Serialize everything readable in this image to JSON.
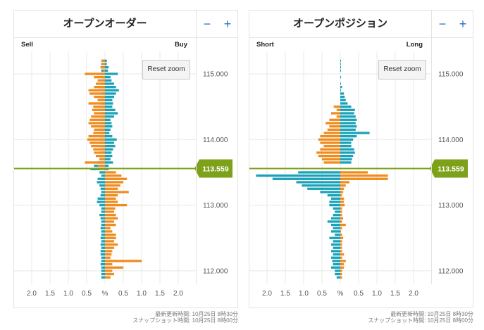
{
  "panels": [
    {
      "title": "オープンオーダー",
      "left_label": "Sell",
      "right_label": "Buy",
      "zoom_out_label": "−",
      "zoom_in_label": "+",
      "reset_zoom_label": "Reset zoom"
    },
    {
      "title": "オープンポジション",
      "left_label": "Short",
      "right_label": "Long",
      "zoom_out_label": "−",
      "zoom_in_label": "+",
      "reset_zoom_label": "Reset zoom"
    }
  ],
  "footer": {
    "update_time": "最新更新時間: 10月25日 8時30分",
    "snapshot_time": "スナップショット時間: 10月25日 8時00分"
  },
  "colors": {
    "sell_short": "#1aa3b8",
    "buy_long": "#f08c1e",
    "current_price": "#7ea11a",
    "grid": "#e8e8e8",
    "panel_border": "#e4e4e4",
    "zoom_button": "#2a73c4"
  },
  "chart_data": [
    {
      "type": "bar",
      "orientation": "horizontal-diverging",
      "title": "オープンオーダー",
      "x_tick_labels": [
        "2.0",
        "1.5",
        "1.0",
        "0.5",
        "%",
        "0.5",
        "1.0",
        "1.5",
        "2.0"
      ],
      "xlim": [
        -2.5,
        2.5
      ],
      "y_ticks": [
        "115.000",
        "114.000",
        "113.000",
        "112.000"
      ],
      "ylim": [
        111.85,
        115.35
      ],
      "current_price": 113.559,
      "current_price_label": "113.559",
      "bucket_size": 0.05,
      "price_levels": [
        115.2,
        115.15,
        115.1,
        115.05,
        115.0,
        114.95,
        114.9,
        114.85,
        114.8,
        114.75,
        114.7,
        114.65,
        114.6,
        114.55,
        114.5,
        114.45,
        114.4,
        114.35,
        114.3,
        114.25,
        114.2,
        114.15,
        114.1,
        114.05,
        114.0,
        113.95,
        113.9,
        113.85,
        113.8,
        113.75,
        113.7,
        113.65,
        113.6,
        113.55,
        113.5,
        113.45,
        113.4,
        113.35,
        113.3,
        113.25,
        113.2,
        113.15,
        113.1,
        113.05,
        113.0,
        112.95,
        112.9,
        112.85,
        112.8,
        112.75,
        112.7,
        112.65,
        112.6,
        112.55,
        112.5,
        112.45,
        112.4,
        112.35,
        112.3,
        112.25,
        112.2,
        112.15,
        112.1,
        112.05,
        112.0,
        111.95,
        111.9
      ],
      "series": [
        {
          "name": "Sell",
          "side": "left",
          "color": "#1aa3b8",
          "values": [
            0.08,
            0.1,
            0.12,
            0.1,
            0.12,
            0.1,
            0.1,
            0.12,
            0.15,
            0.12,
            0.1,
            0.12,
            0.1,
            0.12,
            0.12,
            0.15,
            0.12,
            0.1,
            0.12,
            0.12,
            0.1,
            0.12,
            0.12,
            0.15,
            0.15,
            0.15,
            0.12,
            0.1,
            0.12,
            0.15,
            0.15,
            0.2,
            0.3,
            0.4,
            0.15,
            0.1,
            0.2,
            0.22,
            0.15,
            0.12,
            0.1,
            0.12,
            0.2,
            0.22,
            0.15,
            0.1,
            0.1,
            0.15,
            0.12,
            0.1,
            0.1,
            0.12,
            0.1,
            0.1,
            0.12,
            0.1,
            0.12,
            0.1,
            0.12,
            0.12,
            0.1,
            0.1,
            0.12,
            0.1,
            0.1,
            0.1,
            0.1
          ]
        },
        {
          "name": "Sell",
          "side": "left",
          "color": "#f08c1e",
          "values": [
            0.1,
            0.08,
            0.12,
            0.05,
            0.55,
            0.3,
            0.2,
            0.25,
            0.3,
            0.45,
            0.42,
            0.3,
            0.2,
            0.45,
            0.32,
            0.35,
            0.3,
            0.38,
            0.42,
            0.45,
            0.38,
            0.3,
            0.32,
            0.45,
            0.48,
            0.42,
            0.38,
            0.32,
            0.3,
            0.25,
            0.15,
            0.55,
            0.2,
            0.15,
            0.0,
            0.0,
            0.0,
            0.0,
            0.0,
            0.0,
            0.0,
            0.0,
            0.0,
            0.0,
            0.0,
            0.0,
            0.0,
            0.0,
            0.0,
            0.0,
            0.0,
            0.0,
            0.0,
            0.0,
            0.0,
            0.0,
            0.0,
            0.0,
            0.0,
            0.0,
            0.0,
            0.0,
            0.0,
            0.0,
            0.0,
            0.0,
            0.0
          ]
        },
        {
          "name": "Buy",
          "side": "right",
          "color": "#1aa3b8",
          "values": [
            0.05,
            0.05,
            0.1,
            0.08,
            0.35,
            0.15,
            0.18,
            0.25,
            0.3,
            0.38,
            0.3,
            0.25,
            0.2,
            0.22,
            0.2,
            0.28,
            0.35,
            0.25,
            0.15,
            0.18,
            0.2,
            0.15,
            0.12,
            0.2,
            0.32,
            0.25,
            0.28,
            0.22,
            0.18,
            0.2,
            0.15,
            0.22,
            0.1,
            0.1,
            0.0,
            0.0,
            0.0,
            0.0,
            0.0,
            0.0,
            0.0,
            0.0,
            0.0,
            0.0,
            0.0,
            0.0,
            0.0,
            0.0,
            0.0,
            0.0,
            0.0,
            0.0,
            0.0,
            0.0,
            0.0,
            0.0,
            0.0,
            0.0,
            0.0,
            0.0,
            0.0,
            0.0,
            0.0,
            0.0,
            0.0,
            0.0,
            0.0
          ]
        },
        {
          "name": "Buy",
          "side": "right",
          "color": "#f08c1e",
          "values": [
            0.0,
            0.0,
            0.0,
            0.0,
            0.0,
            0.0,
            0.0,
            0.0,
            0.0,
            0.0,
            0.0,
            0.0,
            0.0,
            0.0,
            0.0,
            0.0,
            0.0,
            0.0,
            0.0,
            0.0,
            0.0,
            0.0,
            0.0,
            0.0,
            0.0,
            0.0,
            0.0,
            0.0,
            0.0,
            0.0,
            0.0,
            0.0,
            0.0,
            0.0,
            0.3,
            0.45,
            0.6,
            0.5,
            0.42,
            0.35,
            0.65,
            0.35,
            0.3,
            0.35,
            0.6,
            0.28,
            0.25,
            0.3,
            0.35,
            0.25,
            0.3,
            0.15,
            0.2,
            0.3,
            0.3,
            0.25,
            0.35,
            0.25,
            0.2,
            0.18,
            0.15,
            1.0,
            0.2,
            0.5,
            0.2,
            0.25,
            0.15
          ]
        }
      ]
    },
    {
      "type": "bar",
      "orientation": "horizontal-diverging",
      "title": "オープンポジション",
      "x_tick_labels": [
        "2.0",
        "1.5",
        "1.0",
        "0.5",
        "%",
        "0.5",
        "1.0",
        "1.5",
        "2.0"
      ],
      "xlim": [
        -2.5,
        2.5
      ],
      "y_ticks": [
        "115.000",
        "114.000",
        "113.000",
        "112.000"
      ],
      "ylim": [
        111.85,
        115.35
      ],
      "current_price": 113.559,
      "current_price_label": "113.559",
      "bucket_size": 0.05,
      "price_levels": [
        115.2,
        115.15,
        115.1,
        115.05,
        115.0,
        114.95,
        114.9,
        114.85,
        114.8,
        114.75,
        114.7,
        114.65,
        114.6,
        114.55,
        114.5,
        114.45,
        114.4,
        114.35,
        114.3,
        114.25,
        114.2,
        114.15,
        114.1,
        114.05,
        114.0,
        113.95,
        113.9,
        113.85,
        113.8,
        113.75,
        113.7,
        113.65,
        113.6,
        113.55,
        113.5,
        113.45,
        113.4,
        113.35,
        113.3,
        113.25,
        113.2,
        113.15,
        113.1,
        113.05,
        113.0,
        112.95,
        112.9,
        112.85,
        112.8,
        112.75,
        112.7,
        112.65,
        112.6,
        112.55,
        112.5,
        112.45,
        112.4,
        112.35,
        112.3,
        112.25,
        112.2,
        112.15,
        112.1,
        112.05,
        112.0,
        111.95,
        111.9
      ],
      "series": [
        {
          "name": "Short",
          "side": "left",
          "color": "#1aa3b8",
          "values": [
            0.0,
            0.0,
            0.0,
            0.0,
            0.0,
            0.0,
            0.0,
            0.0,
            0.0,
            0.0,
            0.0,
            0.0,
            0.0,
            0.0,
            0.0,
            0.0,
            0.0,
            0.0,
            0.0,
            0.0,
            0.0,
            0.0,
            0.0,
            0.0,
            0.0,
            0.0,
            0.0,
            0.0,
            0.0,
            0.0,
            0.0,
            0.0,
            0.0,
            0.0,
            1.15,
            2.3,
            1.85,
            1.2,
            1.05,
            0.9,
            0.55,
            0.35,
            0.25,
            0.3,
            0.3,
            0.2,
            0.15,
            0.2,
            0.25,
            0.35,
            0.25,
            0.2,
            0.25,
            0.15,
            0.3,
            0.2,
            0.25,
            0.2,
            0.25,
            0.2,
            0.25,
            0.22,
            0.2,
            0.25,
            0.15,
            0.15,
            0.1
          ]
        },
        {
          "name": "Short",
          "side": "left",
          "color": "#f08c1e",
          "values": [
            0.0,
            0.0,
            0.0,
            0.0,
            0.0,
            0.0,
            0.0,
            0.0,
            0.0,
            0.0,
            0.0,
            0.0,
            0.0,
            0.0,
            0.18,
            0.1,
            0.25,
            0.1,
            0.3,
            0.4,
            0.3,
            0.35,
            0.45,
            0.55,
            0.6,
            0.55,
            0.45,
            0.55,
            0.65,
            0.6,
            0.5,
            0.45,
            0.0,
            0.0,
            0.0,
            0.0,
            0.0,
            0.0,
            0.0,
            0.0,
            0.0,
            0.0,
            0.0,
            0.0,
            0.0,
            0.0,
            0.0,
            0.0,
            0.0,
            0.0,
            0.0,
            0.0,
            0.0,
            0.0,
            0.0,
            0.0,
            0.0,
            0.0,
            0.0,
            0.0,
            0.0,
            0.0,
            0.0,
            0.0,
            0.0,
            0.0,
            0.0
          ]
        },
        {
          "name": "Long",
          "side": "right",
          "color": "#1aa3b8",
          "values": [
            0.02,
            0.02,
            0.02,
            0.02,
            0.0,
            0.02,
            0.0,
            0.02,
            0.05,
            0.02,
            0.1,
            0.12,
            0.15,
            0.2,
            0.3,
            0.4,
            0.38,
            0.42,
            0.45,
            0.42,
            0.45,
            0.42,
            0.8,
            0.45,
            0.35,
            0.3,
            0.3,
            0.38,
            0.4,
            0.35,
            0.32,
            0.3,
            0.0,
            0.0,
            0.0,
            0.0,
            0.0,
            0.0,
            0.0,
            0.0,
            0.0,
            0.0,
            0.0,
            0.0,
            0.0,
            0.0,
            0.0,
            0.0,
            0.0,
            0.0,
            0.0,
            0.0,
            0.0,
            0.0,
            0.0,
            0.0,
            0.0,
            0.0,
            0.0,
            0.0,
            0.0,
            0.0,
            0.0,
            0.0,
            0.0,
            0.0,
            0.0
          ]
        },
        {
          "name": "Long",
          "side": "right",
          "color": "#f08c1e",
          "values": [
            0.0,
            0.0,
            0.0,
            0.0,
            0.0,
            0.0,
            0.0,
            0.0,
            0.0,
            0.0,
            0.0,
            0.0,
            0.0,
            0.0,
            0.0,
            0.0,
            0.0,
            0.0,
            0.0,
            0.0,
            0.0,
            0.0,
            0.0,
            0.0,
            0.0,
            0.0,
            0.0,
            0.0,
            0.0,
            0.0,
            0.0,
            0.0,
            0.0,
            0.0,
            0.75,
            1.3,
            1.3,
            0.25,
            0.15,
            0.1,
            0.08,
            0.05,
            0.1,
            0.1,
            0.12,
            0.05,
            0.05,
            0.05,
            0.08,
            0.05,
            0.15,
            0.05,
            0.02,
            0.05,
            0.08,
            0.05,
            0.05,
            0.05,
            0.05,
            0.1,
            0.05,
            0.15,
            0.1,
            0.1,
            0.05,
            0.05,
            0.05
          ]
        }
      ]
    }
  ]
}
